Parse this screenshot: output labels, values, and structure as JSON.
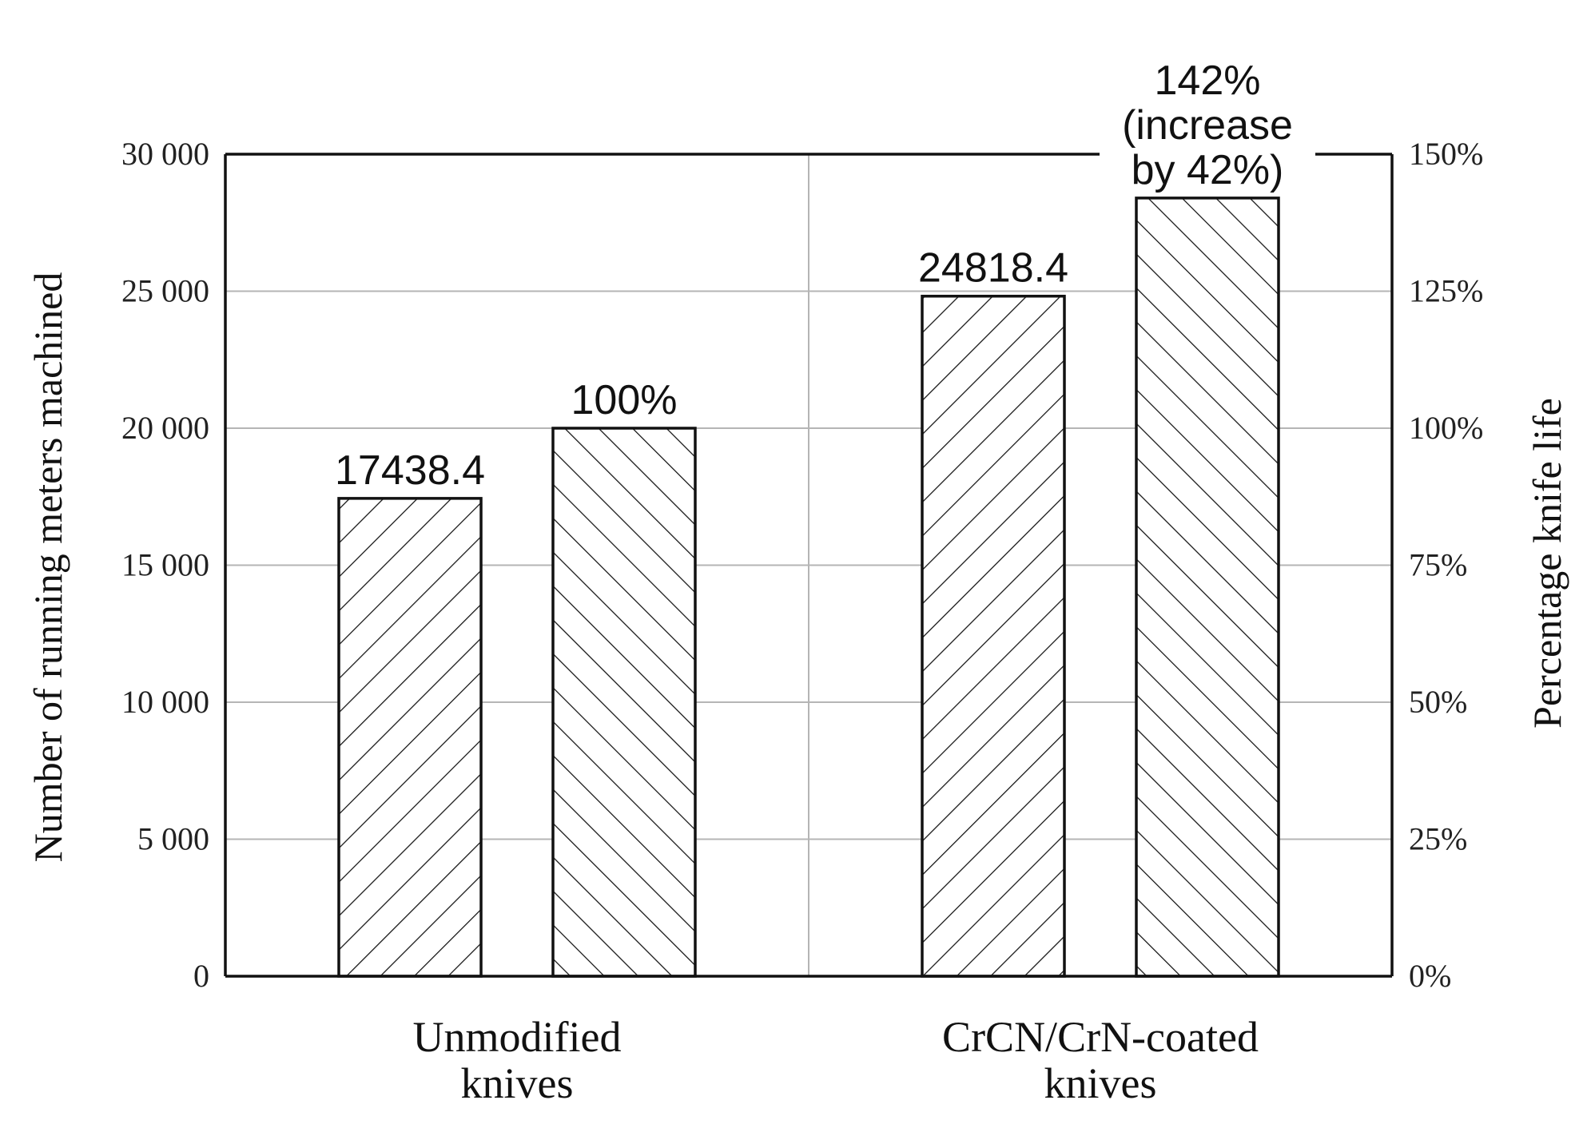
{
  "chart_data": {
    "type": "bar",
    "title": "",
    "categories": [
      "Unmodified\nknives",
      "CrCN/CrN-coated\nknives"
    ],
    "series": [
      {
        "axis": "left",
        "hatch": "forward-diagonal",
        "values": [
          17438.4,
          24818.4
        ],
        "labels": [
          "17438.4",
          "24818.4"
        ]
      },
      {
        "axis": "right",
        "hatch": "back-diagonal",
        "values": [
          100,
          142
        ],
        "labels": [
          "100%",
          "142%\n(increase\nby 42%)"
        ]
      }
    ],
    "ylabel": "Number of running meters machined",
    "ylim": [
      0,
      30000
    ],
    "yticks": [
      "0",
      "5 000",
      "10 000",
      "15 000",
      "20 000",
      "25 000",
      "30 000"
    ],
    "y2label": "Percentage knife life",
    "y2lim": [
      0,
      150
    ],
    "y2ticks": [
      "0%",
      "25%",
      "50%",
      "75%",
      "100%",
      "125%",
      "150%"
    ],
    "grid": true,
    "legend": "none"
  }
}
